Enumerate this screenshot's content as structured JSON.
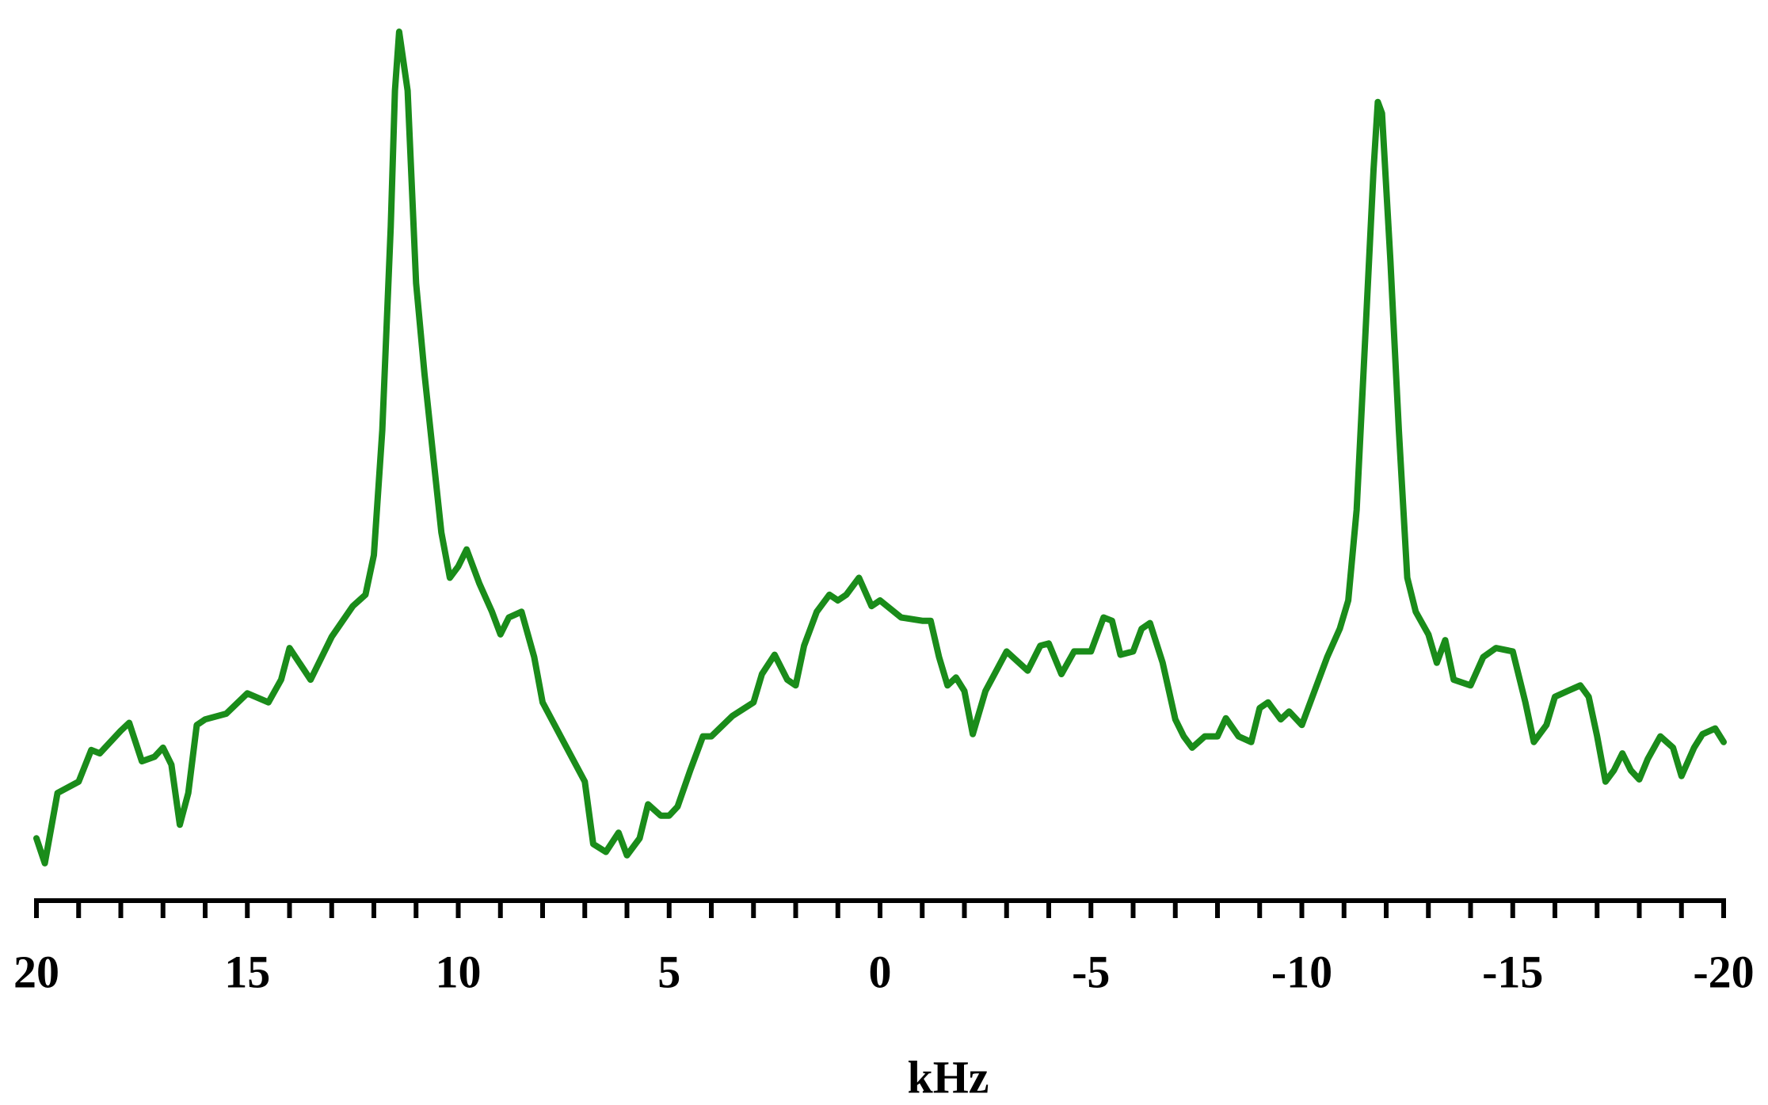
{
  "chart_data": {
    "type": "line",
    "xlabel": "kHz",
    "xlim": [
      20,
      -20
    ],
    "ylim": [
      0,
      795
    ],
    "xticks": [
      20,
      15,
      10,
      5,
      0,
      -5,
      -10,
      -15,
      -20
    ],
    "xminorticks": [
      19,
      18,
      17,
      16,
      14,
      13,
      12,
      11,
      9,
      8,
      7,
      6,
      4,
      3,
      2,
      1,
      -1,
      -2,
      -3,
      -4,
      -6,
      -7,
      -8,
      -9,
      -11,
      -12,
      -13,
      -14,
      -16,
      -17,
      -18,
      -19
    ],
    "series": [
      {
        "color": "#1a8c1a",
        "x": [
          20,
          19.8,
          19.5,
          19,
          18.7,
          18.5,
          18,
          17.8,
          17.5,
          17.2,
          17,
          16.8,
          16.6,
          16.4,
          16.2,
          16,
          15.5,
          15,
          14.5,
          14.2,
          14,
          13.5,
          13,
          12.5,
          12.2,
          12,
          11.8,
          11.6,
          11.5,
          11.4,
          11.2,
          11,
          10.8,
          10.6,
          10.4,
          10.2,
          10,
          9.8,
          9.5,
          9.2,
          9,
          8.8,
          8.5,
          8.2,
          8,
          7.5,
          7,
          6.8,
          6.5,
          6.2,
          6,
          5.7,
          5.5,
          5.2,
          5,
          4.8,
          4.5,
          4.2,
          4,
          3.5,
          3,
          2.8,
          2.5,
          2.2,
          2,
          1.8,
          1.5,
          1.2,
          1,
          0.8,
          0.5,
          0.2,
          0,
          -0.5,
          -1,
          -1.2,
          -1.4,
          -1.6,
          -1.8,
          -2,
          -2.2,
          -2.5,
          -3,
          -3.5,
          -3.8,
          -4,
          -4.3,
          -4.6,
          -5,
          -5.3,
          -5.5,
          -5.7,
          -6,
          -6.2,
          -6.4,
          -6.7,
          -7,
          -7.2,
          -7.4,
          -7.7,
          -8,
          -8.2,
          -8.5,
          -8.8,
          -9,
          -9.2,
          -9.5,
          -9.7,
          -10,
          -10.3,
          -10.6,
          -10.9,
          -11.1,
          -11.3,
          -11.5,
          -11.7,
          -11.8,
          -11.9,
          -12.1,
          -12.3,
          -12.5,
          -12.7,
          -13,
          -13.2,
          -13.4,
          -13.6,
          -14,
          -14.3,
          -14.6,
          -15,
          -15.3,
          -15.5,
          -15.8,
          -16,
          -16.3,
          -16.6,
          -16.8,
          -17,
          -17.2,
          -17.4,
          -17.6,
          -17.8,
          -18,
          -18.2,
          -18.5,
          -18.8,
          -19,
          -19.3,
          -19.5,
          -19.8,
          -20
        ],
        "values": [
          55,
          33,
          95,
          105,
          133,
          130,
          150,
          157,
          123,
          127,
          135,
          120,
          67,
          95,
          155,
          160,
          165,
          183,
          175,
          195,
          223,
          195,
          233,
          260,
          270,
          305,
          415,
          595,
          715,
          767,
          715,
          545,
          465,
          395,
          325,
          285,
          295,
          310,
          280,
          255,
          235,
          250,
          255,
          215,
          175,
          140,
          105,
          50,
          43,
          60,
          40,
          55,
          85,
          75,
          75,
          83,
          115,
          145,
          145,
          163,
          175,
          200,
          217,
          195,
          190,
          225,
          255,
          270,
          265,
          270,
          285,
          260,
          265,
          250,
          247,
          247,
          215,
          190,
          197,
          185,
          147,
          185,
          220,
          203,
          225,
          227,
          200,
          220,
          220,
          250,
          247,
          217,
          220,
          240,
          245,
          210,
          160,
          145,
          135,
          145,
          145,
          161,
          145,
          140,
          170,
          175,
          160,
          167,
          155,
          185,
          215,
          240,
          265,
          345,
          495,
          645,
          705,
          695,
          565,
          415,
          285,
          255,
          235,
          210,
          230,
          195,
          190,
          215,
          223,
          220,
          175,
          140,
          155,
          180,
          185,
          190,
          180,
          145,
          105,
          115,
          130,
          115,
          107,
          125,
          145,
          135,
          110,
          135,
          147,
          152,
          140
        ]
      }
    ]
  }
}
